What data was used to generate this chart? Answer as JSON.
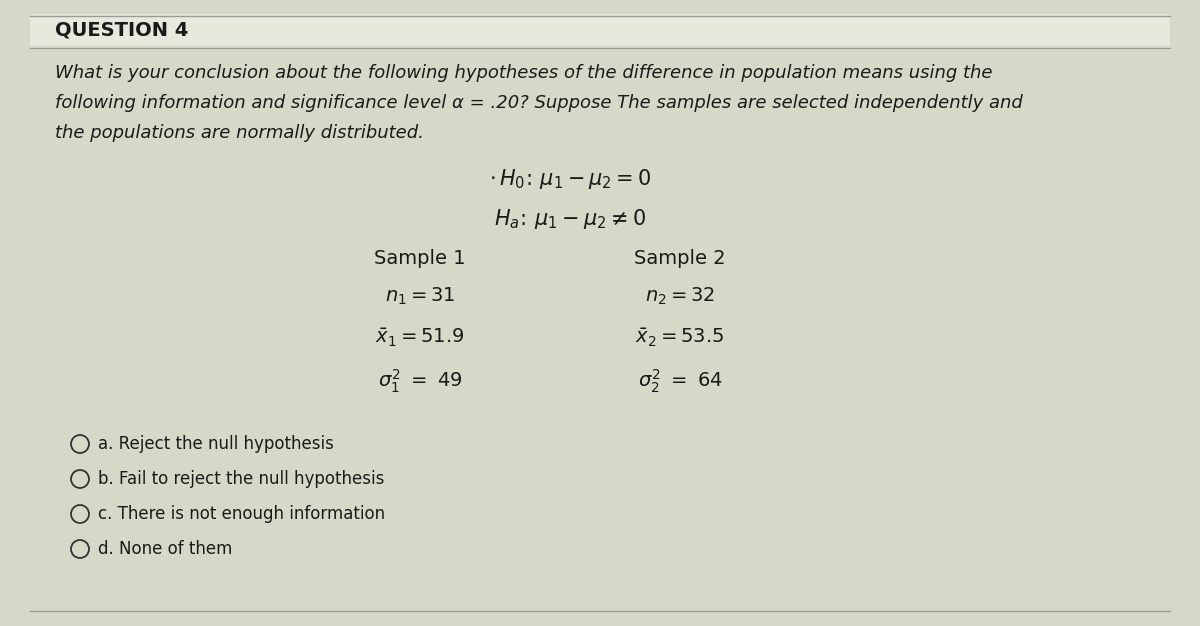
{
  "title": "QUESTION 4",
  "question_text_line1": "What is your conclusion about the following hypotheses of the difference in population means using the",
  "question_text_line2": "following information and significance level α = .20? Suppose The samples are selected independently and",
  "question_text_line3": "the populations are normally distributed.",
  "h0_label": "$\\cdot\\,H_0\\!:\\,\\mu_1-\\mu_2=0$",
  "ha_label": "$H_a\\!:\\,\\mu_1-\\mu_2\\neq 0$",
  "sample1_label": "Sample 1",
  "sample2_label": "Sample 2",
  "n1_text": "$n_1=31$",
  "n2_text": "$n_2=32$",
  "xbar1_text": "$\\bar{x}_1=51.9$",
  "xbar2_text": "$\\bar{x}_2=53.5$",
  "var1_text": "$\\sigma^2_1\\ =\\ 49$",
  "var2_text": "$\\sigma^2_2\\ =\\ 64$",
  "option_a": "a. Reject the null hypothesis",
  "option_b": "b. Fail to reject the null hypothesis",
  "option_c": "c. There is not enough information",
  "option_d": "d. None of them",
  "bg_color": "#d8d8c8",
  "text_color": "#1a1a1a",
  "border_color": "#aaaaaa",
  "white_panel": "#f0efea"
}
